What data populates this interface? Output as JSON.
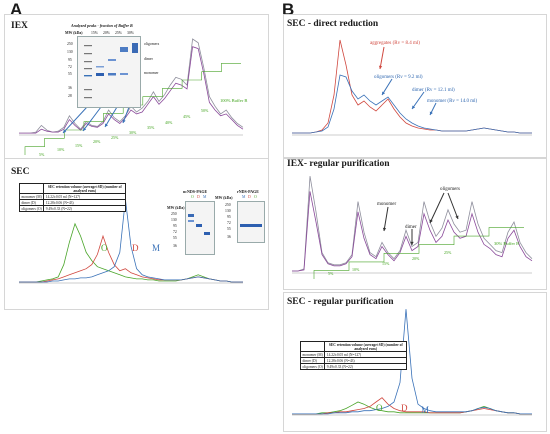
{
  "panels": {
    "A": "A",
    "B": "B"
  },
  "colors": {
    "red": "#d0483f",
    "blue": "#3a72b8",
    "purple": "#8a4a9a",
    "gray": "#8e8e9c",
    "green": "#4aa52a",
    "text_blue": "#2f67b0"
  },
  "iex_a": {
    "title": "IEX",
    "gel": {
      "caption": "Analyzed peaks - fraction of Buffer B",
      "mw_header": "MW (kDa)",
      "lanes": [
        "15%",
        "20%",
        "25%",
        "30%"
      ],
      "mw_markers": [
        "250",
        "130",
        "95",
        "72",
        "55",
        "36",
        "28"
      ],
      "bands": [
        "oligomers",
        "dimer",
        "monomer"
      ]
    },
    "buffer_b_label": "100% Buffer B",
    "steps": [
      "5%",
      "10%",
      "15%",
      "20%",
      "25%",
      "30%",
      "35%",
      "40%",
      "45%",
      "50%"
    ]
  },
  "sec_a": {
    "title": "SEC",
    "table": {
      "col1": "",
      "col2": "SEC retention volume (average±SD) (number of analyzed runs)",
      "rows": [
        {
          "label": "monomer (M)",
          "value": "14.22±0.05 ml (N=127)"
        },
        {
          "label": "dimer (D)",
          "value": "12.28±0.06 (N=43)"
        },
        {
          "label": "oligomers (O)",
          "value": "9.49±0.33 (N=22)"
        }
      ]
    },
    "native_gel": {
      "caption": "ncNDS-PAGE",
      "mw_header": "MW (kDa)",
      "lanes": [
        "O",
        "D",
        "M"
      ],
      "mw_markers": [
        "250",
        "130",
        "95",
        "72",
        "55",
        "36"
      ]
    },
    "rnds_gel": {
      "caption": "rNDS-PAGE",
      "mw_header": "MW (kDa)",
      "lanes": [
        "M",
        "D",
        "O"
      ],
      "mw_markers": [
        "250",
        "130",
        "95",
        "72",
        "55",
        "36"
      ]
    },
    "peaks": {
      "O": "O",
      "D": "D",
      "M": "M"
    }
  },
  "sec_direct": {
    "title": "SEC - direct reduction",
    "labels": {
      "aggregates": "aggregates (Rv = 8.4 ml)",
      "oligomers": "oligomers (Rv = 9.2 ml)",
      "dimer": "dimer (Rv = 12.1 ml)",
      "monomer": "monomer (Rv = 14.0 ml)"
    }
  },
  "iex_b": {
    "title": "IEX- regular purification",
    "labels": {
      "monomer": "monomer",
      "dimer": "dimer",
      "oligomers": "oligomers"
    },
    "buffer_b_label": "30% Buffer B",
    "steps": [
      "5%",
      "10%",
      "15%",
      "20%",
      "25%"
    ]
  },
  "sec_regular": {
    "title": "SEC - regular purification",
    "table": {
      "col1": "",
      "col2": "SEC retention volume (average±SD) (number of analyzed runs)",
      "rows": [
        {
          "label": "monomer (M)",
          "value": "14.22±0.05 ml (N=127)"
        },
        {
          "label": "dimer (D)",
          "value": "12.28±0.06 (N=43)"
        },
        {
          "label": "oligomers (O)",
          "value": "9.49±0.33 (N=22)"
        }
      ]
    },
    "peaks": {
      "O": "O",
      "D": "D",
      "M": "M"
    }
  },
  "chart_data": [
    {
      "type": "line",
      "title": "IEX",
      "x": [
        0,
        1,
        2,
        3,
        4,
        5,
        6,
        7,
        8,
        9,
        10,
        11,
        12,
        13,
        14,
        15,
        16,
        17,
        18,
        19,
        20,
        21,
        22,
        23,
        24,
        25,
        26,
        27,
        28,
        29,
        30,
        31,
        32,
        33,
        34,
        35,
        36,
        37,
        38,
        39,
        40
      ],
      "series": [
        {
          "name": "",
          "values": [
            2,
            2,
            2,
            3,
            10,
            5,
            3,
            4,
            8,
            20,
            12,
            6,
            14,
            10,
            9,
            14,
            26,
            18,
            14,
            20,
            30,
            24,
            28,
            35,
            45,
            35,
            42,
            52,
            60,
            58,
            52,
            100,
            96,
            70,
            40,
            30,
            22,
            26,
            18,
            12,
            8
          ]
        },
        {
          "name": "",
          "values": [
            2,
            2,
            2,
            2,
            6,
            4,
            3,
            3,
            6,
            16,
            10,
            5,
            12,
            9,
            8,
            12,
            22,
            16,
            12,
            18,
            26,
            22,
            24,
            32,
            40,
            32,
            38,
            46,
            54,
            52,
            48,
            92,
            90,
            64,
            34,
            26,
            20,
            22,
            16,
            10,
            6
          ]
        }
      ],
      "ylim": [
        0,
        100
      ]
    },
    {
      "type": "line",
      "title": "SEC",
      "x": [
        0,
        1,
        2,
        3,
        4,
        5,
        6,
        7,
        8,
        9,
        10,
        11,
        12,
        13,
        14,
        15,
        16,
        17,
        18,
        19,
        20,
        21,
        22,
        23,
        24,
        25,
        26,
        27,
        28,
        29,
        30,
        31,
        32,
        33,
        34,
        35,
        36,
        37,
        38,
        39,
        40
      ],
      "series": [
        {
          "name": "O",
          "values": [
            1,
            1,
            1,
            1,
            2,
            3,
            4,
            6,
            18,
            40,
            58,
            46,
            30,
            22,
            16,
            14,
            12,
            10,
            8,
            6,
            5,
            4,
            4,
            3,
            3,
            2,
            2,
            2,
            2,
            3,
            4,
            6,
            8,
            6,
            4,
            3,
            2,
            2,
            1,
            1,
            1
          ]
        },
        {
          "name": "D",
          "values": [
            1,
            1,
            1,
            1,
            1,
            2,
            3,
            4,
            6,
            8,
            10,
            12,
            14,
            18,
            28,
            46,
            30,
            18,
            12,
            14,
            10,
            8,
            6,
            5,
            4,
            3,
            3,
            3,
            3,
            3,
            4,
            5,
            6,
            5,
            4,
            3,
            2,
            2,
            1,
            1,
            1
          ]
        },
        {
          "name": "M",
          "values": [
            1,
            1,
            1,
            1,
            1,
            1,
            2,
            2,
            3,
            4,
            4,
            5,
            5,
            6,
            8,
            10,
            12,
            16,
            30,
            82,
            36,
            14,
            8,
            6,
            5,
            4,
            3,
            3,
            3,
            3,
            4,
            5,
            6,
            5,
            4,
            3,
            2,
            2,
            1,
            1,
            1
          ]
        }
      ],
      "ylim": [
        0,
        100
      ]
    },
    {
      "type": "line",
      "title": "SEC - direct reduction",
      "x": [
        0,
        1,
        2,
        3,
        4,
        5,
        6,
        7,
        8,
        9,
        10,
        11,
        12,
        13,
        14,
        15,
        16,
        17,
        18,
        19,
        20,
        21,
        22,
        23,
        24,
        25,
        26,
        27,
        28,
        29,
        30,
        31,
        32,
        33,
        34,
        35,
        36,
        37,
        38,
        39,
        40
      ],
      "series": [
        {
          "name": "",
          "values": [
            2,
            2,
            2,
            2,
            3,
            5,
            12,
            40,
            95,
            70,
            40,
            30,
            34,
            28,
            24,
            30,
            36,
            26,
            18,
            12,
            9,
            7,
            6,
            5,
            5,
            4,
            4,
            4,
            4,
            4,
            5,
            6,
            7,
            6,
            5,
            4,
            3,
            3,
            2,
            2,
            2
          ]
        },
        {
          "name": "",
          "values": [
            2,
            2,
            2,
            2,
            3,
            4,
            8,
            26,
            60,
            58,
            44,
            36,
            40,
            34,
            30,
            34,
            38,
            30,
            22,
            16,
            12,
            9,
            7,
            6,
            5,
            4,
            4,
            4,
            4,
            4,
            5,
            6,
            7,
            6,
            5,
            4,
            3,
            3,
            2,
            2,
            2
          ]
        }
      ],
      "ylim": [
        0,
        100
      ]
    },
    {
      "type": "line",
      "title": "IEX- regular purification",
      "x": [
        0,
        1,
        2,
        3,
        4,
        5,
        6,
        7,
        8,
        9,
        10,
        11,
        12,
        13,
        14,
        15,
        16,
        17,
        18,
        19,
        20,
        21,
        22,
        23,
        24,
        25,
        26,
        27,
        28,
        29,
        30,
        31,
        32,
        33,
        34,
        35,
        36,
        37,
        38,
        39,
        40
      ],
      "series": [
        {
          "name": "",
          "values": [
            2,
            2,
            4,
            95,
            60,
            20,
            10,
            8,
            8,
            10,
            18,
            70,
            40,
            20,
            16,
            30,
            20,
            14,
            22,
            42,
            26,
            30,
            70,
            50,
            36,
            44,
            62,
            48,
            40,
            42,
            70,
            48,
            34,
            28,
            22,
            20,
            40,
            50,
            30,
            20,
            14
          ]
        },
        {
          "name": "",
          "values": [
            2,
            2,
            3,
            80,
            50,
            18,
            9,
            7,
            7,
            9,
            16,
            60,
            34,
            18,
            14,
            26,
            18,
            12,
            20,
            36,
            22,
            26,
            58,
            42,
            30,
            36,
            52,
            40,
            34,
            36,
            58,
            40,
            28,
            24,
            18,
            16,
            34,
            42,
            26,
            16,
            12
          ]
        }
      ],
      "ylim": [
        0,
        100
      ]
    },
    {
      "type": "line",
      "title": "SEC - regular purification",
      "x": [
        0,
        1,
        2,
        3,
        4,
        5,
        6,
        7,
        8,
        9,
        10,
        11,
        12,
        13,
        14,
        15,
        16,
        17,
        18,
        19,
        20,
        21,
        22,
        23,
        24,
        25,
        26,
        27,
        28,
        29,
        30,
        31,
        32,
        33,
        34,
        35,
        36,
        37,
        38,
        39,
        40
      ],
      "series": [
        {
          "name": "O",
          "values": [
            1,
            1,
            1,
            1,
            1,
            2,
            2,
            3,
            4,
            6,
            9,
            12,
            10,
            7,
            5,
            4,
            3,
            3,
            2,
            2,
            2,
            2,
            2,
            2,
            2,
            2,
            2,
            2,
            2,
            3,
            4,
            6,
            8,
            6,
            4,
            3,
            2,
            2,
            1,
            1,
            1
          ]
        },
        {
          "name": "D",
          "values": [
            1,
            1,
            1,
            1,
            1,
            1,
            2,
            2,
            3,
            3,
            4,
            5,
            6,
            8,
            12,
            16,
            10,
            6,
            4,
            3,
            3,
            3,
            3,
            2,
            2,
            2,
            2,
            2,
            2,
            3,
            4,
            5,
            6,
            5,
            4,
            3,
            2,
            2,
            1,
            1,
            1
          ]
        },
        {
          "name": "M",
          "values": [
            1,
            1,
            1,
            1,
            1,
            1,
            1,
            2,
            2,
            2,
            3,
            3,
            4,
            4,
            5,
            6,
            8,
            12,
            30,
            98,
            34,
            10,
            6,
            4,
            3,
            3,
            3,
            3,
            3,
            3,
            4,
            6,
            7,
            6,
            4,
            3,
            2,
            2,
            1,
            1,
            1
          ]
        }
      ],
      "ylim": [
        0,
        100
      ]
    }
  ]
}
